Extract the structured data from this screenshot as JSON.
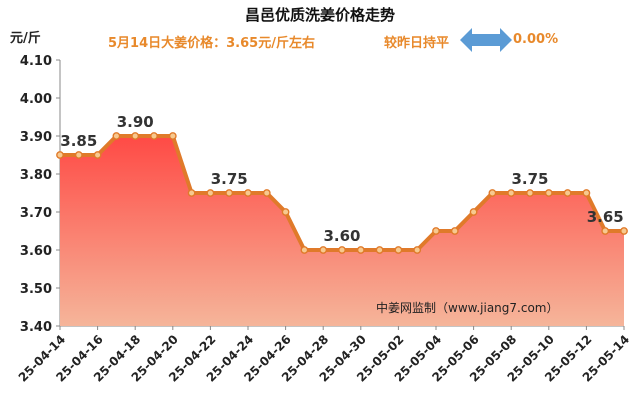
{
  "header": {
    "title": "昌邑优质洗姜价格走势",
    "unit": "元/斤",
    "subtitle": "5月14日大姜价格：3.65元/斤左右",
    "compare_label": "较昨日持平",
    "change": "0.00%",
    "arrow_icon": "double-arrow-icon"
  },
  "watermark": "中姜网监制（www.jiang7.com）",
  "colors": {
    "line": "#e07a2a",
    "marker_fill": "#f7c98f",
    "area_top": "#ff4a45",
    "area_bottom": "#f5b59a",
    "accent_text": "#e8892b",
    "arrow": "#5b9bd5"
  },
  "chart_data": {
    "type": "area",
    "title": "昌邑优质洗姜价格走势",
    "ylabel": "元/斤",
    "ylim": [
      3.4,
      4.1
    ],
    "y_ticks": [
      "3.40",
      "3.50",
      "3.60",
      "3.70",
      "3.80",
      "3.90",
      "4.00",
      "4.10"
    ],
    "grid": false,
    "x": [
      "25-04-14",
      "25-04-15",
      "25-04-16",
      "25-04-17",
      "25-04-18",
      "25-04-19",
      "25-04-20",
      "25-04-21",
      "25-04-22",
      "25-04-23",
      "25-04-24",
      "25-04-25",
      "25-04-26",
      "25-04-27",
      "25-04-28",
      "25-04-29",
      "25-04-30",
      "25-05-01",
      "25-05-02",
      "25-05-03",
      "25-05-04",
      "25-05-05",
      "25-05-06",
      "25-05-07",
      "25-05-08",
      "25-05-09",
      "25-05-10",
      "25-05-11",
      "25-05-12",
      "25-05-13",
      "25-05-14"
    ],
    "x_tick_labels": [
      "25-04-14",
      "25-04-16",
      "25-04-18",
      "25-04-20",
      "25-04-22",
      "25-04-24",
      "25-04-26",
      "25-04-28",
      "25-04-30",
      "25-05-02",
      "25-05-04",
      "25-05-06",
      "25-05-08",
      "25-05-10",
      "25-05-12",
      "25-05-14"
    ],
    "values": [
      3.85,
      3.85,
      3.85,
      3.9,
      3.9,
      3.9,
      3.9,
      3.75,
      3.75,
      3.75,
      3.75,
      3.75,
      3.7,
      3.6,
      3.6,
      3.6,
      3.6,
      3.6,
      3.6,
      3.6,
      3.65,
      3.65,
      3.7,
      3.75,
      3.75,
      3.75,
      3.75,
      3.75,
      3.75,
      3.65,
      3.65
    ],
    "annotations": [
      {
        "index": 1,
        "label": "3.85"
      },
      {
        "index": 4,
        "label": "3.90"
      },
      {
        "index": 9,
        "label": "3.75"
      },
      {
        "index": 15,
        "label": "3.60"
      },
      {
        "index": 25,
        "label": "3.75"
      },
      {
        "index": 29,
        "label": "3.65"
      }
    ]
  }
}
